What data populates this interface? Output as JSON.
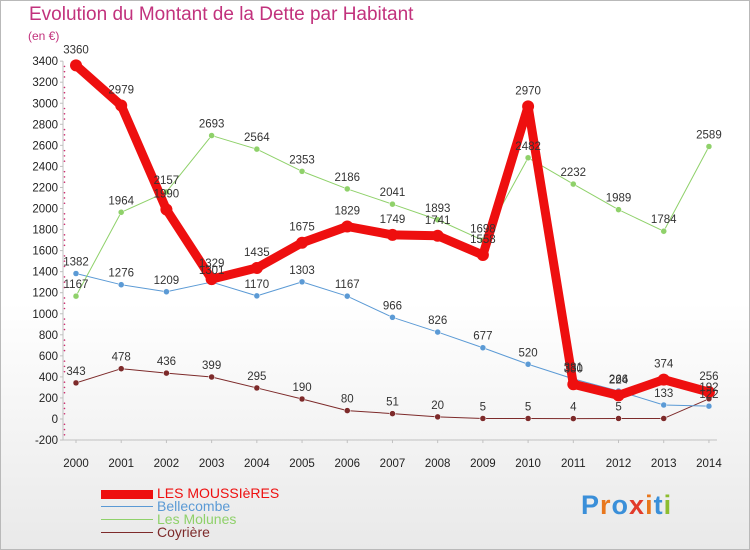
{
  "title": "Evolution du Montant de la Dette par Habitant",
  "unit": "(en €)",
  "logo": {
    "text": "Proxiti",
    "colors": [
      "#3a8fd9",
      "#e8771d",
      "#3a8fd9",
      "#e23b2a",
      "#e8771d",
      "#3a8fd9",
      "#8dbd2f"
    ]
  },
  "chart_data": {
    "type": "line",
    "x": [
      "2000",
      "2001",
      "2002",
      "2003",
      "2004",
      "2005",
      "2006",
      "2007",
      "2008",
      "2009",
      "2010",
      "2011",
      "2012",
      "2013",
      "2014"
    ],
    "ylim": [
      -200,
      3400
    ],
    "yticks": [
      -200,
      0,
      200,
      400,
      600,
      800,
      1000,
      1200,
      1400,
      1600,
      1800,
      2000,
      2200,
      2400,
      2600,
      2800,
      3000,
      3200,
      3400
    ],
    "grid": false,
    "legend": "bottom-left",
    "series": [
      {
        "name": "LES MOUSSIèRES",
        "color": "#ee0f0f",
        "width": 9,
        "values": [
          3360,
          2979,
          1990,
          1329,
          1435,
          1675,
          1829,
          1749,
          1741,
          1558,
          2970,
          330,
          224,
          374,
          256
        ],
        "labels": [
          "3360",
          "2979",
          "1990",
          "1329",
          "1435",
          "1675",
          "1829",
          "1749",
          "1741",
          "1558",
          "2970",
          "330",
          "224",
          "374",
          "256"
        ]
      },
      {
        "name": "Bellecombe",
        "color": "#5b9ad5",
        "width": 1,
        "values": [
          1382,
          1276,
          1209,
          1301,
          1170,
          1303,
          1167,
          966,
          826,
          677,
          520,
          381,
          266,
          133,
          122
        ],
        "labels": [
          "1382",
          "1276",
          "1209",
          "1301",
          "1170",
          "1303",
          "1167",
          "966",
          "826",
          "677",
          "520",
          "381",
          "266",
          "133",
          "122"
        ]
      },
      {
        "name": "Les Molunes",
        "color": "#8fd16a",
        "width": 1,
        "values": [
          1167,
          1964,
          2157,
          2693,
          2564,
          2353,
          2186,
          2041,
          1893,
          1698,
          2482,
          2232,
          1989,
          1784,
          2589
        ],
        "labels": [
          "1167",
          "1964",
          "2157",
          "2693",
          "2564",
          "2353",
          "2186",
          "2041",
          "1893",
          "1698",
          "2482",
          "2232",
          "1989",
          "1784",
          "2589"
        ]
      },
      {
        "name": "Coyrière",
        "color": "#7d2a2a",
        "width": 1,
        "values": [
          343,
          478,
          436,
          399,
          295,
          190,
          80,
          51,
          20,
          5,
          5,
          4,
          5,
          5,
          192
        ],
        "labels": [
          "343",
          "478",
          "436",
          "399",
          "295",
          "190",
          "80",
          "51",
          "20",
          "5",
          "5",
          "4",
          "5",
          "",
          "192"
        ]
      }
    ]
  }
}
